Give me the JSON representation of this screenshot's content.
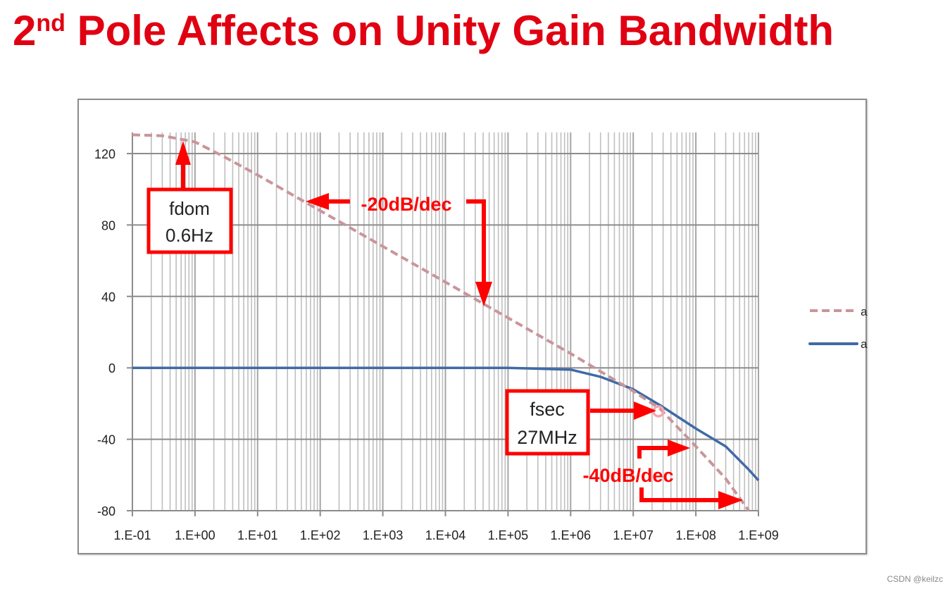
{
  "title": {
    "prefix": "2",
    "superscript": "nd",
    "text": " Pole Affects on Unity Gain Bandwidth"
  },
  "watermark": "CSDN @keilzc",
  "colors": {
    "title": "#e00012",
    "annotation": "#ff0000",
    "open_loop": "#c9959b",
    "closed_loop": "#3f6aa6",
    "grid": "#bfbfbf",
    "axis": "#8c8c8c"
  },
  "annotations": {
    "fdom": {
      "line1": "fdom",
      "line2": "0.6Hz"
    },
    "fsec": {
      "line1": "fsec",
      "line2": "27MHz"
    },
    "slope1": "-20dB/dec",
    "slope2": "-40dB/dec"
  },
  "legend": [
    {
      "label": "a",
      "style": "dashed",
      "color": "#c9959b"
    },
    {
      "label": "a",
      "style": "solid",
      "color": "#3f6aa6"
    }
  ],
  "chart_data": {
    "type": "line",
    "title": "2nd Pole Affects on Unity Gain Bandwidth",
    "xlabel": "",
    "ylabel": "",
    "xscale": "log",
    "xlim": [
      0.1,
      1000000000
    ],
    "ylim": [
      -80,
      130
    ],
    "x_tick_labels": [
      "1.E-01",
      "1.E+00",
      "1.E+01",
      "1.E+02",
      "1.E+03",
      "1.E+04",
      "1.E+05",
      "1.E+06",
      "1.E+07",
      "1.E+08",
      "1.E+09"
    ],
    "y_tick_labels": [
      "120",
      "80",
      "40",
      "0",
      "-40",
      "-80"
    ],
    "y_ticks": [
      120,
      80,
      40,
      0,
      -40,
      -80
    ],
    "grid": true,
    "legend_position": "right",
    "x": [
      0.1,
      0.3,
      0.6,
      1,
      3,
      10,
      100,
      1000,
      10000,
      100000,
      1000000,
      3000000,
      10000000,
      27000000,
      100000000,
      300000000,
      700000000,
      1000000000
    ],
    "series": [
      {
        "name": "a",
        "style": "dashed",
        "values": [
          130.5,
          130,
          128,
          126.5,
          118,
          108,
          88,
          68,
          48,
          28,
          8,
          -2,
          -13,
          -23,
          -44,
          -62,
          -80,
          -88
        ]
      },
      {
        "name": "a",
        "style": "solid",
        "values": [
          0,
          0,
          0,
          0,
          0,
          0,
          0,
          0,
          0,
          0,
          -1,
          -5,
          -12,
          -21,
          -34,
          -44,
          -57,
          -63
        ]
      }
    ],
    "annotations": [
      {
        "text": "fdom 0.6Hz",
        "x": 0.6,
        "y": 128
      },
      {
        "text": "-20dB/dec",
        "x": 100,
        "y": 93
      },
      {
        "text": "fsec 27MHz",
        "x": 27000000,
        "y": -23
      },
      {
        "text": "-40dB/dec",
        "x": 100000000,
        "y": -60
      }
    ]
  }
}
